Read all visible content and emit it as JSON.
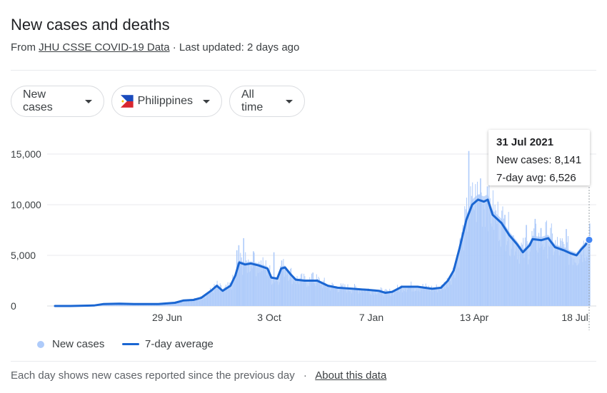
{
  "header": {
    "title": "New cases and deaths",
    "source_prefix": "From",
    "source_link": "JHU CSSE COVID-19 Data",
    "updated": "· Last updated: 2 days ago"
  },
  "filters": {
    "metric": "New cases",
    "location": "Philippines",
    "period": "All time"
  },
  "tooltip": {
    "date": "31 Jul 2021",
    "new_cases": "New cases: 8,141",
    "avg": "7-day avg: 6,526"
  },
  "legend": {
    "bars": "New cases",
    "line": "7-day average"
  },
  "footer": {
    "note": "Each day shows new cases reported since the previous day",
    "sep": "·",
    "link": "About this data"
  },
  "colors": {
    "bars": "#aecbfa",
    "line": "#1a66d2",
    "grid": "#e8eaed"
  },
  "chart_data": {
    "type": "bar",
    "x_unit": "date",
    "x_start": "2020-01-30",
    "x_end": "2021-07-31",
    "ylim": [
      0,
      16000
    ],
    "yticks": [
      0,
      5000,
      10000,
      15000
    ],
    "ytick_labels": [
      "0",
      "5,000",
      "10,000",
      "15,000"
    ],
    "xtick_labels": [
      "29 Jun",
      "3 Oct",
      "7 Jan",
      "13 Apr",
      "18 Jul"
    ],
    "xtick_dates": [
      "2020-06-29",
      "2020-10-03",
      "2021-01-07",
      "2021-04-13",
      "2021-07-18"
    ],
    "grid": true,
    "series": [
      {
        "name": "7-day average",
        "type": "line",
        "points": [
          [
            "2020-01-30",
            0
          ],
          [
            "2020-02-15",
            0
          ],
          [
            "2020-03-10",
            50
          ],
          [
            "2020-03-20",
            200
          ],
          [
            "2020-04-05",
            230
          ],
          [
            "2020-04-20",
            200
          ],
          [
            "2020-05-15",
            200
          ],
          [
            "2020-06-01",
            320
          ],
          [
            "2020-06-10",
            550
          ],
          [
            "2020-06-20",
            600
          ],
          [
            "2020-06-28",
            800
          ],
          [
            "2020-07-08",
            1500
          ],
          [
            "2020-07-14",
            2000
          ],
          [
            "2020-07-20",
            1500
          ],
          [
            "2020-07-28",
            2000
          ],
          [
            "2020-08-02",
            3000
          ],
          [
            "2020-08-06",
            4300
          ],
          [
            "2020-08-12",
            4100
          ],
          [
            "2020-08-18",
            4200
          ],
          [
            "2020-08-26",
            4000
          ],
          [
            "2020-09-04",
            3700
          ],
          [
            "2020-09-08",
            2800
          ],
          [
            "2020-09-14",
            2700
          ],
          [
            "2020-09-18",
            3700
          ],
          [
            "2020-09-22",
            3800
          ],
          [
            "2020-09-28",
            3100
          ],
          [
            "2020-10-03",
            2600
          ],
          [
            "2020-10-12",
            2500
          ],
          [
            "2020-10-25",
            2500
          ],
          [
            "2020-11-05",
            2000
          ],
          [
            "2020-11-15",
            1800
          ],
          [
            "2020-12-01",
            1700
          ],
          [
            "2020-12-15",
            1600
          ],
          [
            "2020-12-27",
            1500
          ],
          [
            "2021-01-03",
            1300
          ],
          [
            "2021-01-10",
            1400
          ],
          [
            "2021-01-20",
            1900
          ],
          [
            "2021-02-05",
            1900
          ],
          [
            "2021-02-20",
            1700
          ],
          [
            "2021-03-01",
            1800
          ],
          [
            "2021-03-08",
            2500
          ],
          [
            "2021-03-14",
            3500
          ],
          [
            "2021-03-20",
            5700
          ],
          [
            "2021-03-27",
            8500
          ],
          [
            "2021-04-02",
            10000
          ],
          [
            "2021-04-08",
            10500
          ],
          [
            "2021-04-14",
            10300
          ],
          [
            "2021-04-18",
            10500
          ],
          [
            "2021-04-23",
            9000
          ],
          [
            "2021-05-02",
            8200
          ],
          [
            "2021-05-10",
            7000
          ],
          [
            "2021-05-18",
            6100
          ],
          [
            "2021-05-24",
            5300
          ],
          [
            "2021-05-31",
            6000
          ],
          [
            "2021-06-03",
            6600
          ],
          [
            "2021-06-12",
            6500
          ],
          [
            "2021-06-19",
            6700
          ],
          [
            "2021-06-26",
            5800
          ],
          [
            "2021-07-05",
            5500
          ],
          [
            "2021-07-12",
            5200
          ],
          [
            "2021-07-18",
            5000
          ],
          [
            "2021-07-23",
            5600
          ],
          [
            "2021-07-27",
            6000
          ],
          [
            "2021-07-31",
            6526
          ]
        ]
      },
      {
        "name": "New cases",
        "type": "bar",
        "spikes": [
          [
            "2020-08-05",
            6000
          ],
          [
            "2020-08-10",
            6700
          ],
          [
            "2020-08-03",
            5500
          ],
          [
            "2020-08-20",
            5400
          ],
          [
            "2020-09-10",
            5300
          ],
          [
            "2020-09-18",
            4500
          ],
          [
            "2020-10-20",
            3300
          ],
          [
            "2021-03-29",
            15300
          ],
          [
            "2021-04-10",
            12600
          ],
          [
            "2021-04-17",
            11800
          ],
          [
            "2021-05-05",
            9000
          ],
          [
            "2021-05-27",
            8000
          ],
          [
            "2021-06-05",
            8600
          ],
          [
            "2021-06-11",
            7700
          ],
          [
            "2021-07-07",
            7600
          ],
          [
            "2021-07-31",
            8141
          ]
        ]
      }
    ],
    "highlight": {
      "date": "2021-07-31",
      "new_cases": 8141,
      "avg": 6526
    }
  }
}
